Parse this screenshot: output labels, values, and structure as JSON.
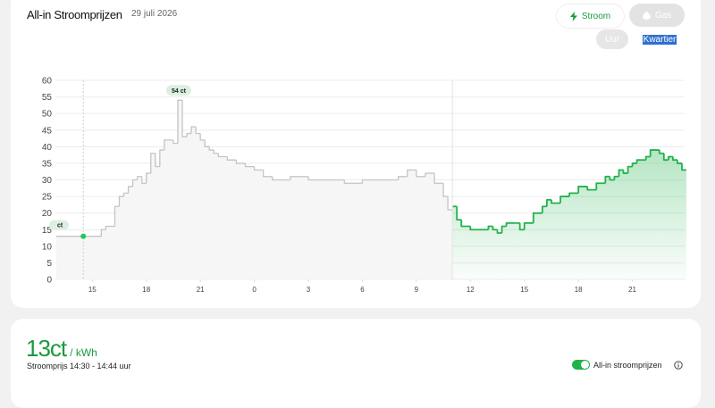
{
  "header": {
    "title": "All-in Stroomprijzen",
    "date": "29 juli 2026"
  },
  "buttons": {
    "energy": [
      "Stroom",
      "Gas"
    ],
    "interval": [
      "Uur",
      "Kwartier"
    ]
  },
  "chart_data": {
    "type": "line",
    "step": true,
    "xlim": [
      13,
      48
    ],
    "xticks": [
      15,
      18,
      21,
      {
        "value": 24,
        "label": "0"
      },
      {
        "value": 27,
        "label": "3"
      },
      {
        "value": 30,
        "label": "6"
      },
      {
        "value": 33,
        "label": "9"
      },
      {
        "value": 36,
        "label": "12"
      },
      {
        "value": 39,
        "label": "15"
      },
      {
        "value": 42,
        "label": "18"
      },
      {
        "value": 45,
        "label": "21"
      }
    ],
    "ylim": [
      0,
      60
    ],
    "yticks": [
      0,
      5,
      10,
      15,
      20,
      25,
      30,
      35,
      40,
      45,
      50,
      55,
      60
    ],
    "grid": true,
    "series": [
      {
        "color": "#c4c4c4",
        "x": [
          13,
          15.5,
          15.75,
          16.25,
          16.5,
          16.75,
          17,
          17.25,
          17.5,
          17.75,
          18,
          18.25,
          18.5,
          18.75,
          19,
          19.5,
          19.75,
          20,
          20.25,
          20.5,
          20.75,
          21,
          21.25,
          21.5,
          21.75,
          22,
          22.5,
          23,
          23.5,
          24,
          24.5,
          25,
          26,
          27,
          28,
          29,
          30,
          31,
          32,
          32.5,
          33,
          33.5,
          34,
          34.5,
          34.75
        ],
        "values": [
          13,
          15,
          16,
          22,
          25,
          26,
          28,
          30,
          31,
          29,
          32,
          38,
          34,
          39,
          42,
          41,
          54,
          43,
          44,
          46,
          44,
          42,
          40,
          39,
          38,
          37,
          36,
          35,
          34,
          33,
          31,
          30,
          31,
          30,
          30,
          29,
          30,
          30,
          31,
          33,
          31,
          32,
          29,
          25,
          21
        ]
      },
      {
        "color": "#22b24c",
        "x": [
          35,
          35.25,
          35.5,
          36,
          36.5,
          37,
          37.25,
          37.5,
          37.75,
          38,
          38.5,
          38.75,
          39,
          39.5,
          40,
          40.25,
          40.5,
          41,
          41.5,
          42,
          42.5,
          43,
          43.5,
          43.75,
          44,
          44.25,
          44.5,
          44.75,
          45,
          45.25,
          45.5,
          45.75,
          46,
          46.5,
          46.75,
          47,
          47.25,
          47.5,
          47.75
        ],
        "values": [
          22,
          18,
          16,
          15,
          15,
          16,
          15,
          14,
          16,
          17,
          17,
          15,
          17,
          20,
          22,
          24,
          23,
          25,
          26,
          28,
          27,
          29,
          31,
          30,
          31,
          33,
          32,
          34,
          35,
          36,
          36,
          37,
          39,
          38,
          36,
          37,
          36,
          35,
          33
        ]
      }
    ],
    "peak": {
      "x": 19.75,
      "value": 54,
      "label": "54 ct"
    },
    "now": {
      "x": 14.5,
      "value": 13,
      "label": "ct"
    }
  },
  "current": {
    "value": 13,
    "unit": "ct",
    "per": "/ kWh",
    "period": "Stroomprijs 14:30 - 14:44 uur",
    "toggle": "All-in stroomprijzen"
  }
}
